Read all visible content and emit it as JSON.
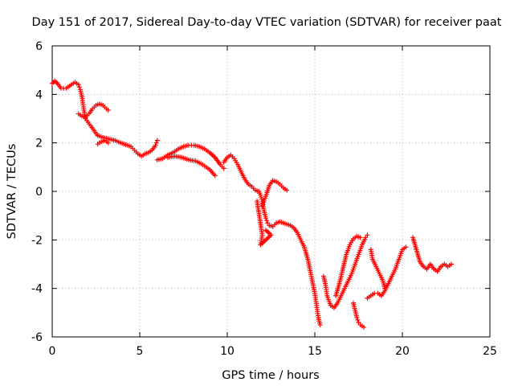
{
  "chart_data": {
    "type": "scatter",
    "title": "Day 151 of 2017, Sidereal Day-to-day VTEC variation (SDTVAR) for receiver paat",
    "xlabel": "GPS time / hours",
    "ylabel": "SDTVAR / TECUs",
    "xlim": [
      0,
      25
    ],
    "ylim": [
      -6,
      6
    ],
    "xticks": [
      0,
      5,
      10,
      15,
      20,
      25
    ],
    "yticks": [
      -6,
      -4,
      -2,
      0,
      2,
      4,
      6
    ],
    "grid": true,
    "marker": "+",
    "color": "#ff0000",
    "segments": [
      {
        "name": "main-trace",
        "points": [
          [
            0.0,
            4.45
          ],
          [
            0.15,
            4.55
          ],
          [
            0.3,
            4.45
          ],
          [
            0.5,
            4.25
          ],
          [
            0.8,
            4.25
          ],
          [
            1.1,
            4.4
          ],
          [
            1.3,
            4.5
          ],
          [
            1.5,
            4.4
          ],
          [
            1.6,
            4.2
          ],
          [
            1.7,
            3.9
          ],
          [
            1.8,
            3.4
          ],
          [
            1.9,
            3.0
          ],
          [
            2.05,
            2.85
          ],
          [
            2.2,
            2.7
          ],
          [
            2.4,
            2.5
          ],
          [
            2.6,
            2.3
          ],
          [
            2.8,
            2.25
          ],
          [
            3.0,
            2.2
          ],
          [
            3.3,
            2.15
          ],
          [
            3.6,
            2.1
          ],
          [
            3.9,
            2.0
          ],
          [
            4.1,
            1.95
          ],
          [
            4.3,
            1.9
          ],
          [
            4.5,
            1.85
          ],
          [
            4.7,
            1.7
          ],
          [
            4.9,
            1.55
          ],
          [
            5.1,
            1.45
          ],
          [
            5.3,
            1.55
          ],
          [
            5.5,
            1.6
          ],
          [
            5.7,
            1.7
          ],
          [
            5.9,
            1.9
          ],
          [
            6.0,
            2.1
          ]
        ]
      },
      {
        "name": "loop-upper",
        "points": [
          [
            1.5,
            3.2
          ],
          [
            1.7,
            3.1
          ],
          [
            1.9,
            3.05
          ],
          [
            2.1,
            3.2
          ],
          [
            2.3,
            3.4
          ],
          [
            2.5,
            3.55
          ],
          [
            2.7,
            3.6
          ],
          [
            2.9,
            3.55
          ],
          [
            3.1,
            3.4
          ],
          [
            3.2,
            3.35
          ]
        ]
      },
      {
        "name": "loop-lower",
        "points": [
          [
            2.6,
            1.95
          ],
          [
            2.8,
            2.05
          ],
          [
            3.0,
            2.1
          ],
          [
            3.2,
            2.0
          ]
        ]
      },
      {
        "name": "midday-arc",
        "points": [
          [
            6.0,
            1.3
          ],
          [
            6.3,
            1.35
          ],
          [
            6.6,
            1.5
          ],
          [
            6.9,
            1.6
          ],
          [
            7.2,
            1.75
          ],
          [
            7.5,
            1.85
          ],
          [
            7.8,
            1.9
          ],
          [
            8.1,
            1.9
          ],
          [
            8.4,
            1.85
          ],
          [
            8.7,
            1.75
          ],
          [
            9.0,
            1.6
          ],
          [
            9.3,
            1.4
          ],
          [
            9.6,
            1.1
          ],
          [
            9.8,
            0.95
          ]
        ]
      },
      {
        "name": "midday-lower",
        "points": [
          [
            6.6,
            1.4
          ],
          [
            7.0,
            1.45
          ],
          [
            7.4,
            1.4
          ],
          [
            7.8,
            1.3
          ],
          [
            8.2,
            1.25
          ],
          [
            8.6,
            1.1
          ],
          [
            9.0,
            0.9
          ],
          [
            9.3,
            0.65
          ]
        ]
      },
      {
        "name": "afternoon-fall",
        "points": [
          [
            9.8,
            1.2
          ],
          [
            10.0,
            1.4
          ],
          [
            10.2,
            1.5
          ],
          [
            10.4,
            1.35
          ],
          [
            10.6,
            1.1
          ],
          [
            10.8,
            0.8
          ],
          [
            11.0,
            0.5
          ],
          [
            11.2,
            0.3
          ],
          [
            11.4,
            0.2
          ],
          [
            11.6,
            0.05
          ],
          [
            11.8,
            0.0
          ],
          [
            11.9,
            -0.15
          ],
          [
            12.0,
            -0.4
          ],
          [
            12.1,
            -0.8
          ],
          [
            12.2,
            -1.1
          ],
          [
            12.3,
            -1.3
          ],
          [
            12.4,
            -1.4
          ],
          [
            12.6,
            -1.45
          ],
          [
            12.8,
            -1.3
          ],
          [
            13.0,
            -1.25
          ],
          [
            13.2,
            -1.3
          ],
          [
            13.4,
            -1.35
          ],
          [
            13.6,
            -1.4
          ],
          [
            13.8,
            -1.5
          ],
          [
            14.0,
            -1.7
          ],
          [
            14.2,
            -2.0
          ],
          [
            14.4,
            -2.3
          ],
          [
            14.6,
            -2.8
          ],
          [
            14.8,
            -3.5
          ],
          [
            15.0,
            -4.2
          ],
          [
            15.1,
            -4.7
          ],
          [
            15.2,
            -5.2
          ],
          [
            15.3,
            -5.5
          ]
        ]
      },
      {
        "name": "noon-bump",
        "points": [
          [
            12.0,
            -0.6
          ],
          [
            12.2,
            -0.2
          ],
          [
            12.4,
            0.25
          ],
          [
            12.6,
            0.45
          ],
          [
            12.8,
            0.4
          ],
          [
            13.0,
            0.3
          ],
          [
            13.2,
            0.15
          ],
          [
            13.4,
            0.05
          ]
        ]
      },
      {
        "name": "noon-scatter",
        "points": [
          [
            11.7,
            -0.4
          ],
          [
            12.0,
            -1.8
          ],
          [
            11.9,
            -2.2
          ],
          [
            12.5,
            -1.8
          ],
          [
            12.2,
            -1.6
          ]
        ]
      },
      {
        "name": "evening-rise",
        "points": [
          [
            15.5,
            -3.5
          ],
          [
            15.6,
            -3.8
          ],
          [
            15.7,
            -4.3
          ],
          [
            15.9,
            -4.7
          ],
          [
            16.1,
            -4.8
          ],
          [
            16.3,
            -4.6
          ],
          [
            16.5,
            -4.3
          ],
          [
            16.7,
            -4.0
          ],
          [
            16.9,
            -3.7
          ],
          [
            17.1,
            -3.4
          ],
          [
            17.3,
            -3.0
          ],
          [
            17.5,
            -2.6
          ],
          [
            17.7,
            -2.2
          ],
          [
            17.9,
            -1.9
          ],
          [
            18.0,
            -1.8
          ]
        ]
      },
      {
        "name": "evening-loop",
        "points": [
          [
            16.2,
            -4.3
          ],
          [
            16.4,
            -3.8
          ],
          [
            16.6,
            -3.2
          ],
          [
            16.8,
            -2.6
          ],
          [
            17.0,
            -2.2
          ],
          [
            17.2,
            -1.95
          ],
          [
            17.4,
            -1.85
          ],
          [
            17.6,
            -1.9
          ]
        ]
      },
      {
        "name": "evening-dip",
        "points": [
          [
            17.2,
            -4.6
          ],
          [
            17.3,
            -4.9
          ],
          [
            17.4,
            -5.2
          ],
          [
            17.5,
            -5.4
          ],
          [
            17.6,
            -5.5
          ],
          [
            17.8,
            -5.6
          ]
        ]
      },
      {
        "name": "late-evening",
        "points": [
          [
            18.0,
            -4.4
          ],
          [
            18.2,
            -4.3
          ],
          [
            18.4,
            -4.2
          ],
          [
            18.6,
            -4.2
          ],
          [
            18.8,
            -4.3
          ],
          [
            19.0,
            -4.1
          ],
          [
            19.2,
            -3.8
          ],
          [
            19.4,
            -3.5
          ],
          [
            19.6,
            -3.2
          ],
          [
            19.8,
            -2.8
          ],
          [
            20.0,
            -2.4
          ],
          [
            20.2,
            -2.3
          ]
        ]
      },
      {
        "name": "late-spur",
        "points": [
          [
            18.2,
            -2.4
          ],
          [
            18.3,
            -2.8
          ],
          [
            18.5,
            -3.1
          ],
          [
            18.7,
            -3.4
          ],
          [
            18.9,
            -3.7
          ],
          [
            19.0,
            -4.0
          ]
        ]
      },
      {
        "name": "night",
        "points": [
          [
            20.6,
            -1.9
          ],
          [
            20.8,
            -2.4
          ],
          [
            21.0,
            -2.9
          ],
          [
            21.2,
            -3.1
          ],
          [
            21.4,
            -3.2
          ],
          [
            21.6,
            -3.0
          ],
          [
            21.8,
            -3.2
          ],
          [
            22.0,
            -3.3
          ],
          [
            22.2,
            -3.1
          ],
          [
            22.4,
            -3.0
          ],
          [
            22.6,
            -3.1
          ],
          [
            22.8,
            -3.0
          ]
        ]
      }
    ]
  }
}
